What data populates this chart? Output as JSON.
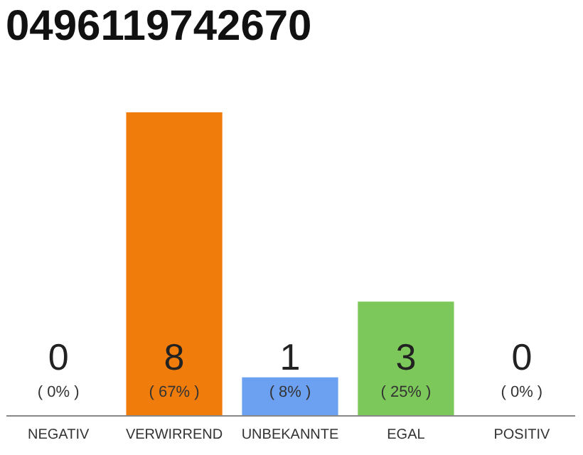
{
  "chart_data": {
    "type": "bar",
    "title": "0496119742670",
    "categories": [
      "NEGATIV",
      "VERWIRREND",
      "UNBEKANNTE",
      "EGAL",
      "POSITIV"
    ],
    "values": [
      0,
      8,
      1,
      3,
      0
    ],
    "colors": [
      "#aaaaaa",
      "#f07d0b",
      "#6ca0f0",
      "#7dc85a",
      "#aaaaaa"
    ],
    "data_labels": true,
    "annotations": [
      "( 0% )",
      "( 67% )",
      "( 8% )",
      "( 25% )",
      "( 0% )"
    ]
  }
}
